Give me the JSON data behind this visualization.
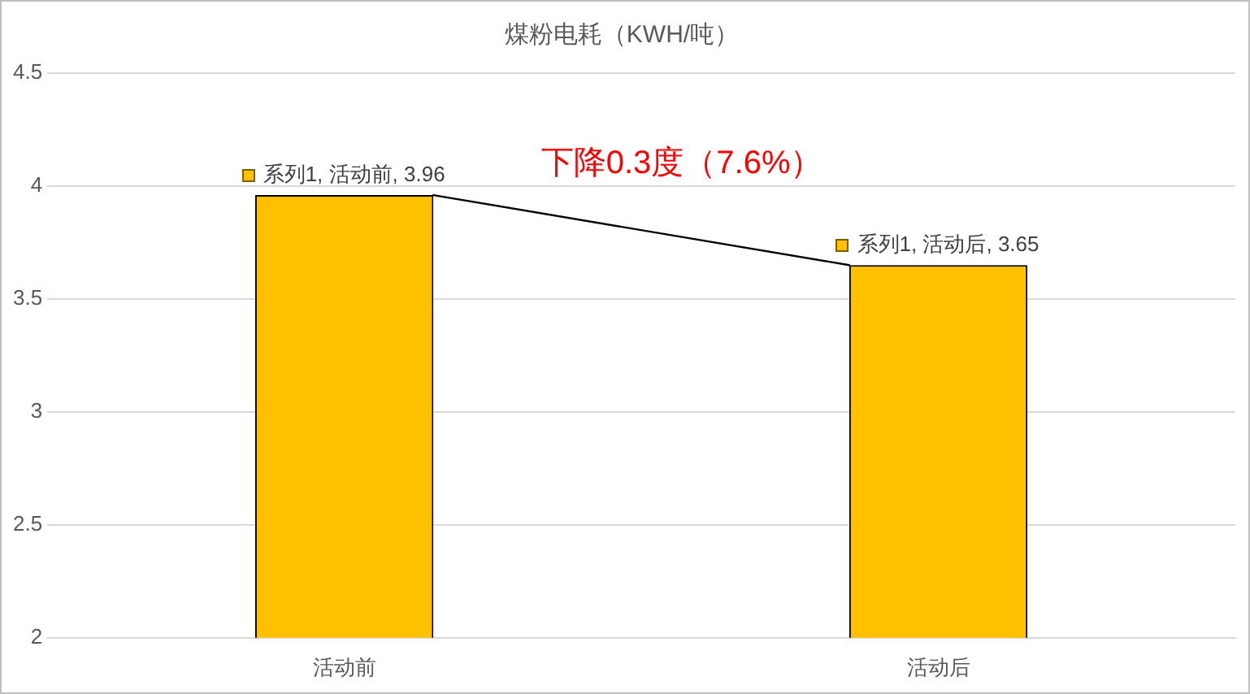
{
  "chart_data": {
    "type": "bar",
    "title": "煤粉电耗（KWH/吨）",
    "categories": [
      "活动前",
      "活动后"
    ],
    "series": [
      {
        "color": "#ffc000",
        "values": [
          3.96,
          3.65
        ],
        "value_labels": [
          "系列1, 活动前, 3.96",
          "系列1, 活动后, 3.65"
        ]
      }
    ],
    "ylim": [
      2,
      4.5
    ],
    "yticks": [
      2,
      2.5,
      3,
      3.5,
      4,
      4.5
    ],
    "grid": "y",
    "legend": false,
    "annotations": [
      "下降0.3度（7.6%）"
    ]
  }
}
